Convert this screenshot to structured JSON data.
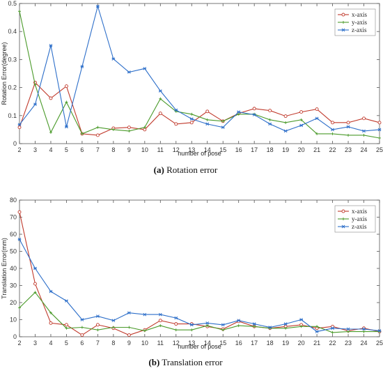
{
  "chart_data": [
    {
      "type": "line",
      "caption_label": "(a)",
      "caption_text": "Rotation error",
      "xlabel": "number of pose",
      "ylabel": "Rotation Error(degree)",
      "xlim": [
        2,
        25
      ],
      "ylim": [
        0,
        0.5
      ],
      "xticks": [
        2,
        3,
        4,
        5,
        6,
        7,
        8,
        9,
        10,
        11,
        12,
        13,
        14,
        15,
        16,
        17,
        18,
        19,
        20,
        21,
        22,
        23,
        24,
        25
      ],
      "yticks": [
        0,
        0.1,
        0.2,
        0.3,
        0.4,
        0.5
      ],
      "ytick_labels": [
        "0",
        "0.1",
        "0.2",
        "0.3",
        "0.4",
        "0.5"
      ],
      "legend_position": "top-right",
      "x": [
        2,
        3,
        4,
        5,
        6,
        7,
        8,
        9,
        10,
        11,
        12,
        13,
        14,
        15,
        16,
        17,
        18,
        19,
        20,
        21,
        22,
        23,
        24,
        25
      ],
      "series": [
        {
          "name": "x-axis",
          "color": "#c0392b",
          "marker": "circle",
          "values": [
            0.058,
            0.218,
            0.162,
            0.205,
            0.035,
            0.03,
            0.055,
            0.058,
            0.05,
            0.108,
            0.07,
            0.075,
            0.115,
            0.08,
            0.108,
            0.125,
            0.118,
            0.098,
            0.113,
            0.123,
            0.075,
            0.075,
            0.09,
            0.075
          ]
        },
        {
          "name": "y-axis",
          "color": "#4a9a2a",
          "marker": "plus",
          "values": [
            0.472,
            0.21,
            0.04,
            0.148,
            0.035,
            0.058,
            0.05,
            0.045,
            0.058,
            0.16,
            0.115,
            0.105,
            0.085,
            0.08,
            0.105,
            0.105,
            0.085,
            0.075,
            0.085,
            0.035,
            0.035,
            0.03,
            0.03,
            0.02
          ]
        },
        {
          "name": "z-axis",
          "color": "#2c6ec9",
          "marker": "star",
          "values": [
            0.068,
            0.14,
            0.35,
            0.06,
            0.275,
            0.49,
            0.302,
            0.255,
            0.268,
            0.188,
            0.12,
            0.088,
            0.07,
            0.058,
            0.113,
            0.103,
            0.07,
            0.045,
            0.065,
            0.09,
            0.05,
            0.06,
            0.045,
            0.05
          ]
        }
      ]
    },
    {
      "type": "line",
      "caption_label": "(b)",
      "caption_text": "Translation error",
      "xlabel": "number of pose",
      "ylabel": "Translation Error(mm)",
      "xlim": [
        2,
        25
      ],
      "ylim": [
        0,
        80
      ],
      "xticks": [
        2,
        3,
        4,
        5,
        6,
        7,
        8,
        9,
        10,
        11,
        12,
        13,
        14,
        15,
        16,
        17,
        18,
        19,
        20,
        21,
        22,
        23,
        24,
        25
      ],
      "yticks": [
        0,
        10,
        20,
        30,
        40,
        50,
        60,
        70,
        80
      ],
      "ytick_labels": [
        "0",
        "10",
        "20",
        "30",
        "40",
        "50",
        "60",
        "70",
        "80"
      ],
      "legend_position": "top-right",
      "x": [
        2,
        3,
        4,
        5,
        6,
        7,
        8,
        9,
        10,
        11,
        12,
        13,
        14,
        15,
        16,
        17,
        18,
        19,
        20,
        21,
        22,
        23,
        24,
        25
      ],
      "series": [
        {
          "name": "x-axis",
          "color": "#c0392b",
          "marker": "circle",
          "values": [
            73,
            31,
            8,
            7,
            1,
            7,
            5,
            1,
            4,
            9.5,
            7.5,
            7.5,
            6,
            4.5,
            9,
            6,
            5,
            6,
            7,
            5,
            6,
            3.5,
            5,
            3
          ]
        },
        {
          "name": "y-axis",
          "color": "#4a9a2a",
          "marker": "plus",
          "values": [
            17,
            26,
            14,
            5,
            5.5,
            4,
            5.5,
            5.5,
            3.5,
            6.5,
            4,
            4,
            6.5,
            4,
            6.5,
            6,
            5,
            5,
            6,
            6,
            2.5,
            3,
            3,
            3
          ]
        },
        {
          "name": "z-axis",
          "color": "#2c6ec9",
          "marker": "star",
          "values": [
            57,
            40,
            26.5,
            21,
            10,
            12,
            9.5,
            14,
            13,
            13,
            11,
            7,
            8,
            7,
            9.5,
            7.5,
            5.5,
            7.5,
            10,
            3,
            5,
            4.5,
            4.5,
            3.5
          ]
        }
      ]
    }
  ]
}
